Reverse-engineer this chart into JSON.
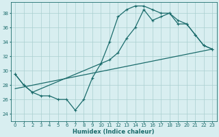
{
  "xlabel": "Humidex (Indice chaleur)",
  "xlim": [
    -0.5,
    23.5
  ],
  "ylim": [
    23.0,
    39.5
  ],
  "xticks": [
    0,
    1,
    2,
    3,
    4,
    5,
    6,
    7,
    8,
    9,
    10,
    11,
    12,
    13,
    14,
    15,
    16,
    17,
    18,
    19,
    20,
    21,
    22,
    23
  ],
  "yticks": [
    24,
    26,
    28,
    30,
    32,
    34,
    36,
    38
  ],
  "bg_color": "#d8eef0",
  "line_color": "#1a6b6b",
  "grid_color": "#aacfcf",
  "line1_x": [
    0,
    1,
    2,
    3,
    4,
    5,
    6,
    7,
    8,
    9,
    10,
    11,
    12,
    13,
    14,
    15,
    16,
    17,
    18,
    19,
    20,
    21,
    22,
    23
  ],
  "line1_y": [
    29.5,
    28.0,
    27.0,
    26.5,
    26.5,
    26.0,
    26.0,
    24.5,
    26.0,
    29.0,
    31.0,
    34.0,
    37.5,
    38.5,
    39.0,
    39.0,
    38.5,
    38.0,
    38.0,
    36.5,
    36.5,
    35.0,
    33.5,
    33.0
  ],
  "line2_x": [
    0,
    1,
    2,
    10,
    11,
    12,
    13,
    14,
    15,
    16,
    17,
    18,
    19,
    20,
    21,
    22,
    23
  ],
  "line2_y": [
    29.5,
    28.0,
    27.0,
    31.0,
    31.5,
    32.5,
    34.5,
    36.0,
    38.5,
    37.0,
    37.5,
    38.0,
    37.0,
    36.5,
    35.0,
    33.5,
    33.0
  ],
  "line3_x": [
    0,
    23
  ],
  "line3_y": [
    27.5,
    33.0
  ],
  "marker_size": 2.5,
  "linewidth": 0.9,
  "xlabel_fontsize": 6.0,
  "tick_fontsize": 5.0
}
